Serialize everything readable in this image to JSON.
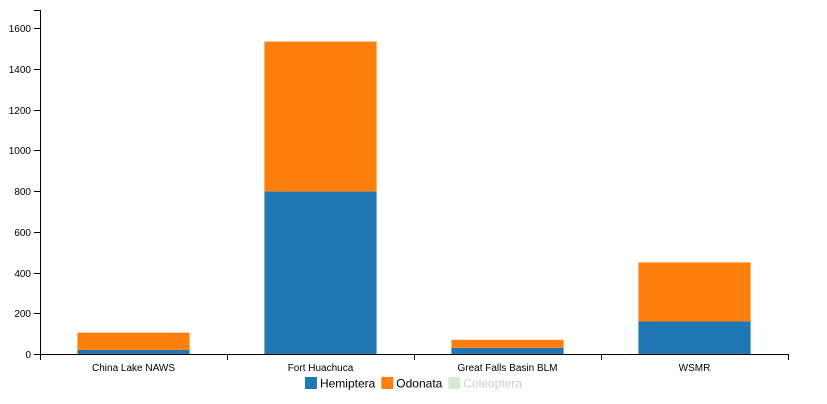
{
  "chart_data": {
    "type": "bar",
    "stacked": true,
    "categories": [
      "China Lake NAWS",
      "Fort Huachuca",
      "Great Falls Basin BLM",
      "WSMR"
    ],
    "series": [
      {
        "name": "Hemiptera",
        "color": "#1f77b4",
        "values": [
          20,
          798,
          30,
          160
        ],
        "visible": true
      },
      {
        "name": "Odonata",
        "color": "#ff7f0e",
        "values": [
          85,
          737,
          40,
          290
        ],
        "visible": true
      },
      {
        "name": "Coleoptera",
        "color": "#d3ead3",
        "values": [
          0,
          0,
          0,
          0
        ],
        "visible": false
      }
    ],
    "yticks": [
      0,
      200,
      400,
      600,
      800,
      1000,
      1200,
      1400,
      1600
    ],
    "ylim": [
      0,
      1690
    ],
    "grid": false,
    "legend_position": "bottom-center"
  }
}
